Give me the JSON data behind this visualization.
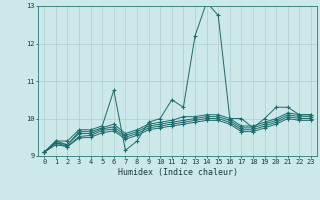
{
  "xlabel": "Humidex (Indice chaleur)",
  "xlim": [
    -0.5,
    23.5
  ],
  "ylim": [
    9,
    13
  ],
  "yticks": [
    9,
    10,
    11,
    12,
    13
  ],
  "xticks": [
    0,
    1,
    2,
    3,
    4,
    5,
    6,
    7,
    8,
    9,
    10,
    11,
    12,
    13,
    14,
    15,
    16,
    17,
    18,
    19,
    20,
    21,
    22,
    23
  ],
  "bg_color": "#cce8e8",
  "grid_color": "#b0cccc",
  "line_color": "#1a6b6b",
  "lines": [
    [
      9.1,
      9.4,
      9.4,
      9.7,
      9.7,
      9.8,
      10.75,
      9.15,
      9.4,
      9.9,
      10.0,
      10.5,
      10.3,
      12.2,
      13.1,
      12.75,
      10.0,
      10.0,
      9.75,
      10.0,
      10.3,
      10.3,
      10.1,
      10.1
    ],
    [
      9.1,
      9.4,
      9.3,
      9.65,
      9.65,
      9.75,
      9.85,
      9.6,
      9.7,
      9.85,
      9.9,
      9.95,
      10.05,
      10.05,
      10.1,
      10.1,
      10.0,
      9.8,
      9.8,
      9.9,
      10.0,
      10.15,
      10.1,
      10.1
    ],
    [
      9.1,
      9.35,
      9.3,
      9.6,
      9.6,
      9.72,
      9.78,
      9.55,
      9.65,
      9.8,
      9.85,
      9.9,
      9.95,
      10.0,
      10.05,
      10.05,
      9.95,
      9.75,
      9.75,
      9.85,
      9.95,
      10.1,
      10.05,
      10.05
    ],
    [
      9.1,
      9.35,
      9.25,
      9.52,
      9.55,
      9.68,
      9.72,
      9.5,
      9.6,
      9.75,
      9.8,
      9.85,
      9.9,
      9.95,
      10.0,
      10.0,
      9.9,
      9.7,
      9.7,
      9.8,
      9.9,
      10.05,
      10.0,
      10.0
    ],
    [
      9.1,
      9.3,
      9.25,
      9.48,
      9.5,
      9.62,
      9.67,
      9.45,
      9.55,
      9.7,
      9.75,
      9.8,
      9.85,
      9.9,
      9.95,
      9.95,
      9.85,
      9.65,
      9.65,
      9.75,
      9.85,
      10.0,
      9.95,
      9.95
    ]
  ]
}
